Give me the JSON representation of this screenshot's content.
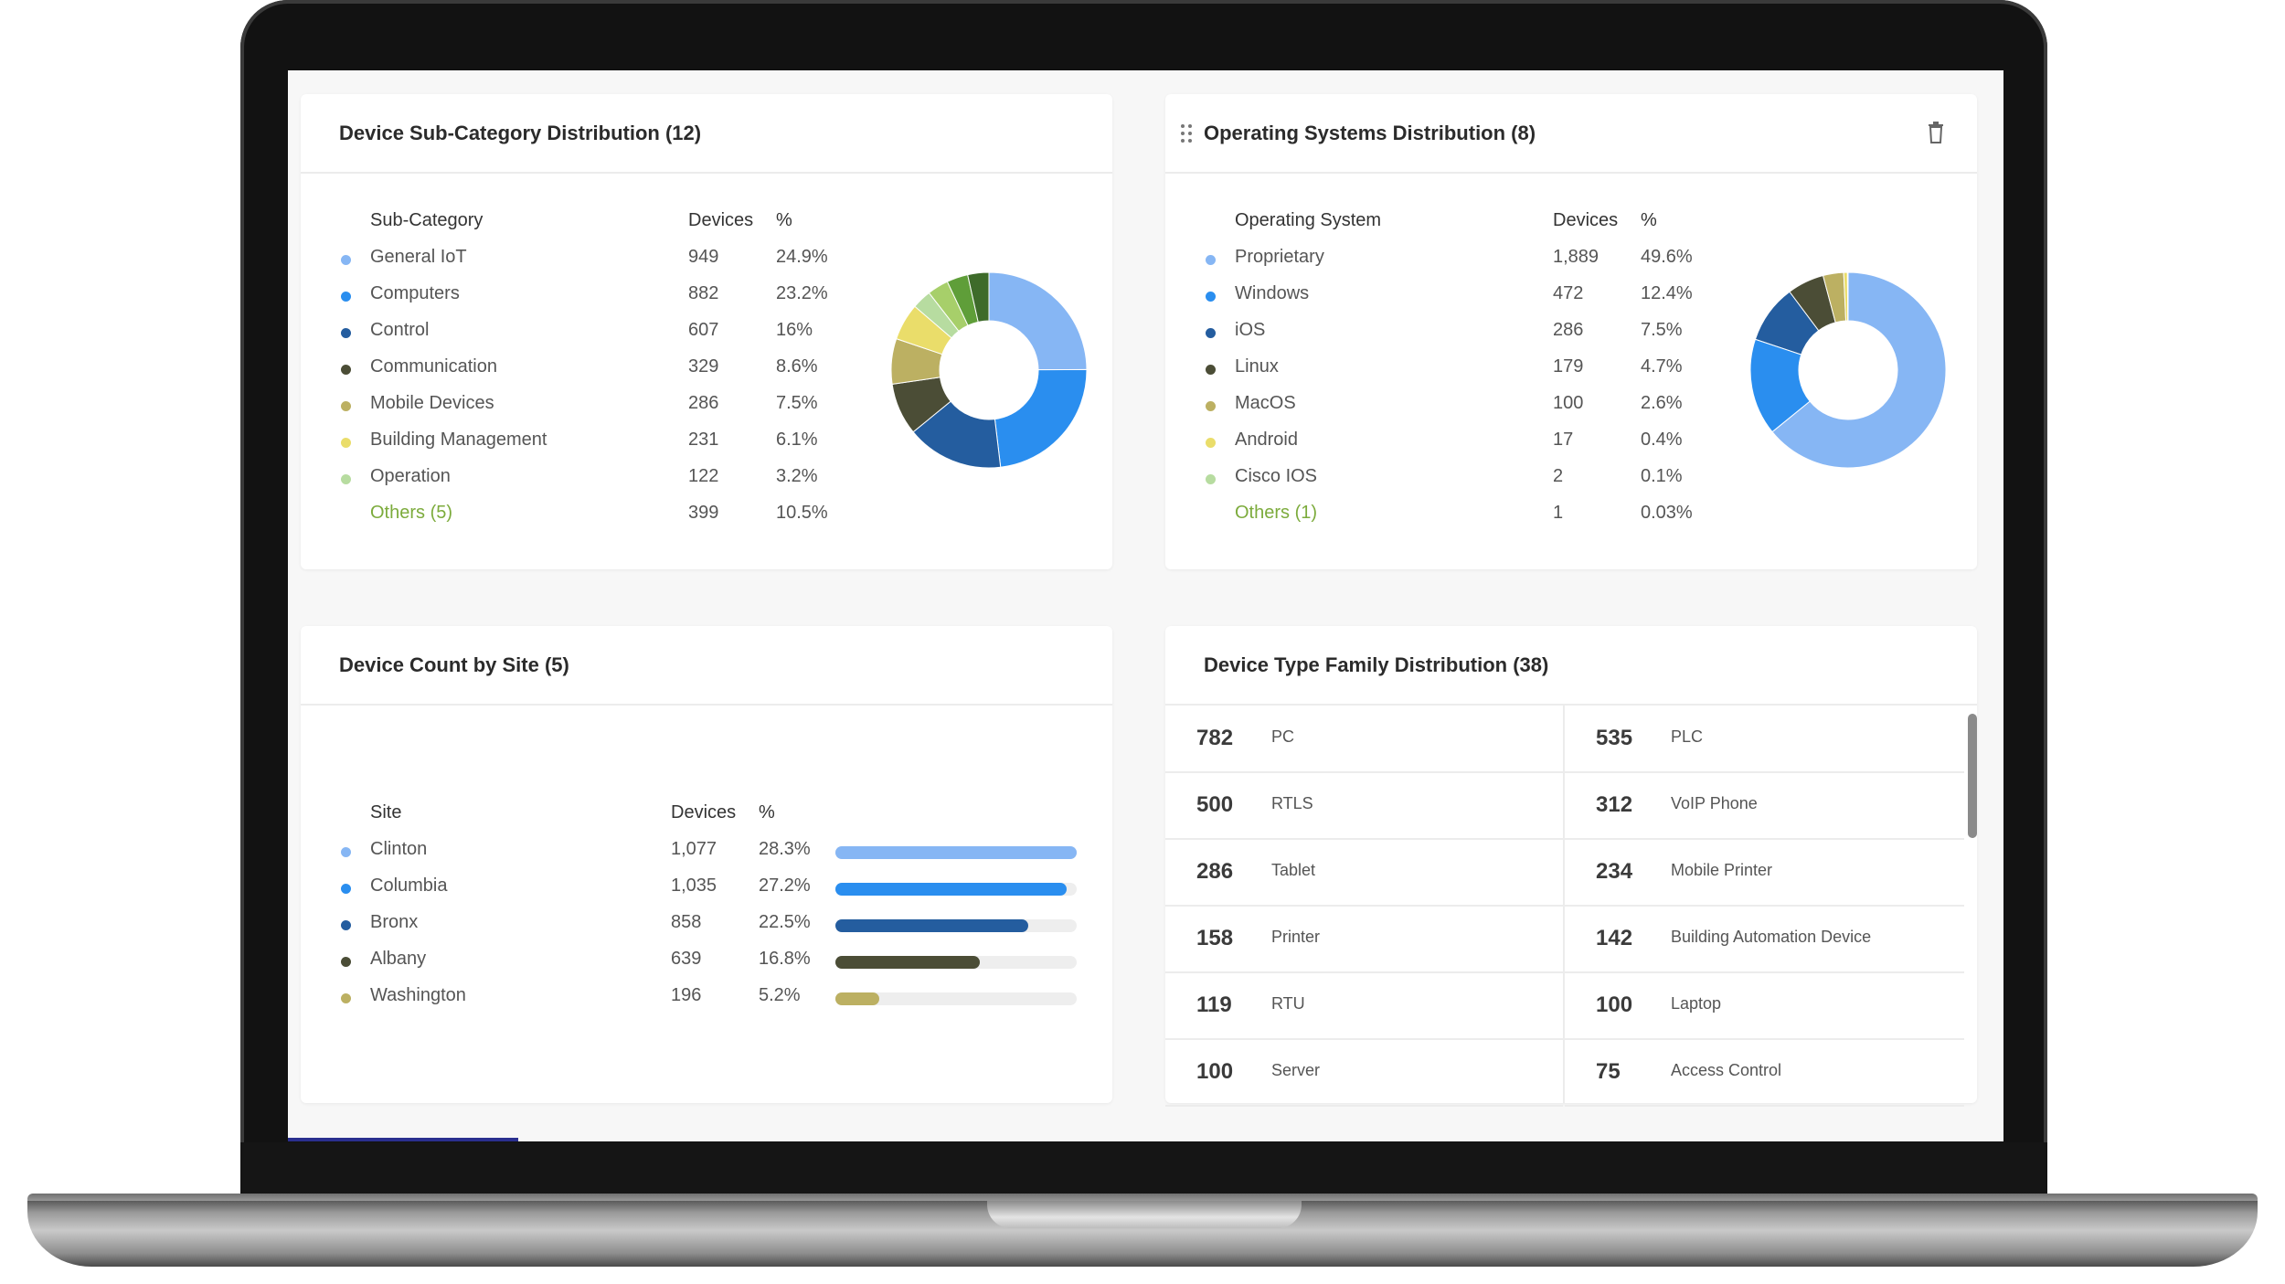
{
  "colors": {
    "light_blue": "#86b6f4",
    "blue": "#2a8eef",
    "dark_blue": "#245d9f",
    "dark_olive": "#4b4d36",
    "olive": "#bcb062",
    "yellow": "#eadd6a",
    "light_green": "#b7dca0",
    "green": "#7cbf50",
    "dark_green": "#3e7b2e",
    "others_text": "#7cab3c"
  },
  "subcategory": {
    "title": "Device Sub-Category Distribution (12)",
    "headers": {
      "label": "Sub-Category",
      "devices": "Devices",
      "pct": "%"
    },
    "rows": [
      {
        "label": "General IoT",
        "devices": "949",
        "pct": "24.9%",
        "color": "#86b6f4"
      },
      {
        "label": "Computers",
        "devices": "882",
        "pct": "23.2%",
        "color": "#2a8eef"
      },
      {
        "label": "Control",
        "devices": "607",
        "pct": "16%",
        "color": "#245d9f"
      },
      {
        "label": "Communication",
        "devices": "329",
        "pct": "8.6%",
        "color": "#4b4d36"
      },
      {
        "label": "Mobile Devices",
        "devices": "286",
        "pct": "7.5%",
        "color": "#bcb062"
      },
      {
        "label": "Building Management",
        "devices": "231",
        "pct": "6.1%",
        "color": "#eadd6a"
      },
      {
        "label": "Operation",
        "devices": "122",
        "pct": "3.2%",
        "color": "#b7dca0"
      }
    ],
    "others": {
      "label": "Others (5)",
      "devices": "399",
      "pct": "10.5%"
    },
    "donut": [
      {
        "value": 24.9,
        "color": "#86b6f4"
      },
      {
        "value": 23.2,
        "color": "#2a8eef"
      },
      {
        "value": 16.0,
        "color": "#245d9f"
      },
      {
        "value": 8.6,
        "color": "#4b4d36"
      },
      {
        "value": 7.5,
        "color": "#bcb062"
      },
      {
        "value": 6.1,
        "color": "#eadd6a"
      },
      {
        "value": 3.2,
        "color": "#b7dca0"
      },
      {
        "value": 3.5,
        "color": "#a7cf6a"
      },
      {
        "value": 3.5,
        "color": "#5f9e39"
      },
      {
        "value": 3.5,
        "color": "#3e6b2a"
      }
    ]
  },
  "os": {
    "title": "Operating Systems Distribution (8)",
    "headers": {
      "label": "Operating System",
      "devices": "Devices",
      "pct": "%"
    },
    "rows": [
      {
        "label": "Proprietary",
        "devices": "1,889",
        "pct": "49.6%",
        "color": "#86b6f4"
      },
      {
        "label": "Windows",
        "devices": "472",
        "pct": "12.4%",
        "color": "#2a8eef"
      },
      {
        "label": "iOS",
        "devices": "286",
        "pct": "7.5%",
        "color": "#245d9f"
      },
      {
        "label": "Linux",
        "devices": "179",
        "pct": "4.7%",
        "color": "#4b4d36"
      },
      {
        "label": "MacOS",
        "devices": "100",
        "pct": "2.6%",
        "color": "#bcb062"
      },
      {
        "label": "Android",
        "devices": "17",
        "pct": "0.4%",
        "color": "#eadd6a"
      },
      {
        "label": "Cisco IOS",
        "devices": "2",
        "pct": "0.1%",
        "color": "#b7dca0"
      }
    ],
    "others": {
      "label": "Others (1)",
      "devices": "1",
      "pct": "0.03%"
    },
    "donut": [
      {
        "value": 62.2,
        "color": "#86b6f4"
      },
      {
        "value": 15.5,
        "color": "#2a8eef"
      },
      {
        "value": 9.4,
        "color": "#245d9f"
      },
      {
        "value": 5.9,
        "color": "#4b4d36"
      },
      {
        "value": 3.3,
        "color": "#bcb062"
      },
      {
        "value": 0.6,
        "color": "#eadd6a"
      },
      {
        "value": 0.1,
        "color": "#b7dca0"
      }
    ]
  },
  "site": {
    "title": "Device Count by Site (5)",
    "headers": {
      "label": "Site",
      "devices": "Devices",
      "pct": "%"
    },
    "rows": [
      {
        "label": "Clinton",
        "devices": "1,077",
        "pct": "28.3%",
        "fill": 1.0,
        "color": "#86b6f4"
      },
      {
        "label": "Columbia",
        "devices": "1,035",
        "pct": "27.2%",
        "fill": 0.96,
        "color": "#2a8eef"
      },
      {
        "label": "Bronx",
        "devices": "858",
        "pct": "22.5%",
        "fill": 0.8,
        "color": "#245d9f"
      },
      {
        "label": "Albany",
        "devices": "639",
        "pct": "16.8%",
        "fill": 0.6,
        "color": "#4b4d36"
      },
      {
        "label": "Washington",
        "devices": "196",
        "pct": "5.2%",
        "fill": 0.18,
        "color": "#bcb062"
      }
    ]
  },
  "device_type": {
    "title": "Device Type Family Distribution (38)",
    "items": [
      {
        "count": "782",
        "name": "PC"
      },
      {
        "count": "535",
        "name": "PLC"
      },
      {
        "count": "500",
        "name": "RTLS"
      },
      {
        "count": "312",
        "name": "VoIP Phone"
      },
      {
        "count": "286",
        "name": "Tablet"
      },
      {
        "count": "234",
        "name": "Mobile Printer"
      },
      {
        "count": "158",
        "name": "Printer"
      },
      {
        "count": "142",
        "name": "Building Automation Device"
      },
      {
        "count": "119",
        "name": "RTU"
      },
      {
        "count": "100",
        "name": "Laptop"
      },
      {
        "count": "100",
        "name": "Server"
      },
      {
        "count": "75",
        "name": "Access Control"
      }
    ]
  },
  "icons": {
    "drag": "drag-handle-icon",
    "delete": "trash-icon"
  }
}
